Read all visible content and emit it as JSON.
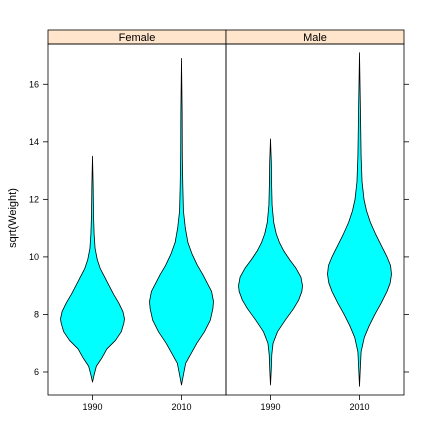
{
  "chart_data": {
    "type": "violin",
    "ylabel": "sqrt(Weight)",
    "xlabel": "",
    "ylim": [
      5.2,
      17.4
    ],
    "yticks": [
      6,
      8,
      10,
      12,
      14,
      16
    ],
    "grid": false,
    "colors": {
      "fill": "#00ffff",
      "outline": "#000000",
      "strip": "#ffe5cc"
    },
    "panels": [
      {
        "strip": "Female",
        "groups": [
          {
            "label": "1990",
            "profile": [
              [
                5.65,
                0.0
              ],
              [
                5.9,
                0.05
              ],
              [
                6.2,
                0.12
              ],
              [
                6.5,
                0.3
              ],
              [
                6.8,
                0.45
              ],
              [
                7.1,
                0.72
              ],
              [
                7.4,
                0.9
              ],
              [
                7.7,
                0.98
              ],
              [
                7.85,
                1.0
              ],
              [
                8.1,
                0.95
              ],
              [
                8.4,
                0.82
              ],
              [
                8.7,
                0.66
              ],
              [
                9.0,
                0.52
              ],
              [
                9.3,
                0.38
              ],
              [
                9.6,
                0.24
              ],
              [
                9.9,
                0.15
              ],
              [
                10.3,
                0.08
              ],
              [
                10.8,
                0.05
              ],
              [
                11.5,
                0.03
              ],
              [
                12.5,
                0.02
              ],
              [
                13.5,
                0.0
              ]
            ]
          },
          {
            "label": "2010",
            "profile": [
              [
                5.55,
                0.0
              ],
              [
                5.9,
                0.06
              ],
              [
                6.3,
                0.13
              ],
              [
                6.7,
                0.33
              ],
              [
                7.0,
                0.48
              ],
              [
                7.4,
                0.72
              ],
              [
                7.8,
                0.9
              ],
              [
                8.2,
                0.98
              ],
              [
                8.45,
                1.0
              ],
              [
                8.8,
                0.94
              ],
              [
                9.1,
                0.8
              ],
              [
                9.4,
                0.66
              ],
              [
                9.7,
                0.5
              ],
              [
                10.1,
                0.33
              ],
              [
                10.5,
                0.2
              ],
              [
                11.0,
                0.12
              ],
              [
                11.6,
                0.06
              ],
              [
                12.5,
                0.04
              ],
              [
                13.5,
                0.025
              ],
              [
                15.0,
                0.02
              ],
              [
                16.9,
                0.0
              ]
            ]
          }
        ]
      },
      {
        "strip": "Male",
        "groups": [
          {
            "label": "1990",
            "profile": [
              [
                5.55,
                0.0
              ],
              [
                6.0,
                0.02
              ],
              [
                6.6,
                0.04
              ],
              [
                7.0,
                0.08
              ],
              [
                7.4,
                0.22
              ],
              [
                7.8,
                0.46
              ],
              [
                8.2,
                0.72
              ],
              [
                8.5,
                0.88
              ],
              [
                8.8,
                0.98
              ],
              [
                9.0,
                1.0
              ],
              [
                9.3,
                0.95
              ],
              [
                9.6,
                0.8
              ],
              [
                9.9,
                0.6
              ],
              [
                10.2,
                0.42
              ],
              [
                10.5,
                0.28
              ],
              [
                10.8,
                0.18
              ],
              [
                11.2,
                0.1
              ],
              [
                11.8,
                0.05
              ],
              [
                12.5,
                0.035
              ],
              [
                13.3,
                0.025
              ],
              [
                14.1,
                0.0
              ]
            ]
          },
          {
            "label": "2010",
            "profile": [
              [
                5.5,
                0.0
              ],
              [
                6.0,
                0.02
              ],
              [
                6.7,
                0.05
              ],
              [
                7.2,
                0.15
              ],
              [
                7.6,
                0.3
              ],
              [
                8.0,
                0.48
              ],
              [
                8.4,
                0.68
              ],
              [
                8.8,
                0.86
              ],
              [
                9.1,
                0.96
              ],
              [
                9.4,
                1.0
              ],
              [
                9.7,
                0.97
              ],
              [
                10.0,
                0.86
              ],
              [
                10.4,
                0.68
              ],
              [
                10.8,
                0.5
              ],
              [
                11.2,
                0.34
              ],
              [
                11.6,
                0.22
              ],
              [
                12.0,
                0.14
              ],
              [
                12.6,
                0.08
              ],
              [
                13.5,
                0.05
              ],
              [
                15.0,
                0.03
              ],
              [
                17.1,
                0.0
              ]
            ]
          }
        ]
      }
    ]
  }
}
